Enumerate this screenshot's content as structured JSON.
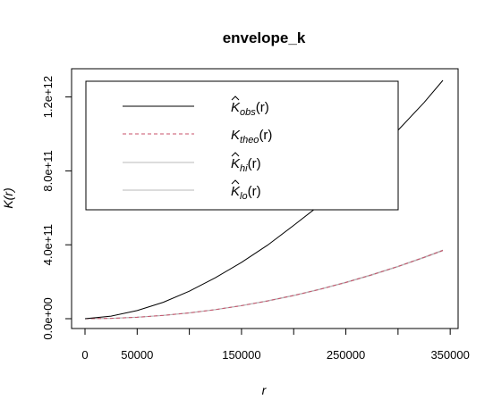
{
  "chart_data": {
    "type": "line",
    "title": "envelope_k",
    "xlabel": "r",
    "ylabel": "K(r)",
    "xlim": [
      0,
      350000
    ],
    "ylim": [
      0,
      1300000000000.0
    ],
    "x_ticks": [
      0,
      50000,
      150000,
      250000,
      350000
    ],
    "x_tick_labels": [
      "0",
      "50000",
      "150000",
      "250000",
      "350000"
    ],
    "x_minor_ticks": [
      100000,
      200000,
      300000
    ],
    "y_ticks": [
      0,
      400000000000.0,
      800000000000.0,
      1200000000000.0
    ],
    "y_tick_labels": [
      "0.0e+00",
      "4.0e+11",
      "8.0e+11",
      "1.2e+12"
    ],
    "grid": false,
    "legend_position": "top-left",
    "series": [
      {
        "name": "K̂obs(r)",
        "color": "#000000",
        "style": "solid",
        "x": [
          0,
          25000,
          50000,
          75000,
          100000,
          125000,
          150000,
          175000,
          200000,
          225000,
          250000,
          275000,
          300000,
          325000,
          343000
        ],
        "values": [
          0,
          14000000000.0,
          44000000000.0,
          89000000000.0,
          149000000000.0,
          222000000000.0,
          305000000000.0,
          398000000000.0,
          505000000000.0,
          615000000000.0,
          740000000000.0,
          875000000000.0,
          1020000000000.0,
          1170000000000.0,
          1290000000000.0
        ]
      },
      {
        "name": "Ktheo(r)",
        "color": "#c8506a",
        "style": "dashed",
        "x": [
          0,
          25000,
          50000,
          75000,
          100000,
          125000,
          150000,
          175000,
          200000,
          225000,
          250000,
          275000,
          300000,
          325000,
          343000
        ],
        "values": [
          0,
          2000000000.0,
          7900000000.0,
          17700000000.0,
          31400000000.0,
          49100000000.0,
          70700000000.0,
          96200000000.0,
          125700000000.0,
          159000000000.0,
          196300000000.0,
          237600000000.0,
          282700000000.0,
          331800000000.0,
          369600000000.0
        ]
      },
      {
        "name": "K̂hi(r)",
        "color": "#b8b8b8",
        "style": "solid",
        "x": [
          0,
          25000,
          50000,
          75000,
          100000,
          125000,
          150000,
          175000,
          200000,
          225000,
          250000,
          275000,
          300000,
          325000,
          343000
        ],
        "values": [
          0,
          2100000000.0,
          8100000000.0,
          18000000000.0,
          31800000000.0,
          49600000000.0,
          71300000000.0,
          97000000000.0,
          126600000000.0,
          160000000000.0,
          197500000000.0,
          239000000000.0,
          284300000000.0,
          333600000000.0,
          371600000000.0
        ]
      },
      {
        "name": "K̂lo(r)",
        "color": "#b8b8b8",
        "style": "solid",
        "x": [
          0,
          25000,
          50000,
          75000,
          100000,
          125000,
          150000,
          175000,
          200000,
          225000,
          250000,
          275000,
          300000,
          325000,
          343000
        ],
        "values": [
          0,
          1900000000.0,
          7700000000.0,
          17400000000.0,
          31000000000.0,
          48600000000.0,
          70100000000.0,
          95400000000.0,
          124800000000.0,
          158000000000.0,
          195100000000.0,
          236200000000.0,
          281100000000.0,
          330000000000.0,
          367600000000.0
        ]
      }
    ]
  },
  "legend": {
    "entries": [
      {
        "base": "K",
        "hat": true,
        "sub": "obs",
        "arg": "(r)"
      },
      {
        "base": "K",
        "hat": false,
        "sub": "theo",
        "arg": "(r)"
      },
      {
        "base": "K",
        "hat": true,
        "sub": "hi",
        "arg": "(r)"
      },
      {
        "base": "K",
        "hat": true,
        "sub": "lo",
        "arg": "(r)"
      }
    ]
  }
}
